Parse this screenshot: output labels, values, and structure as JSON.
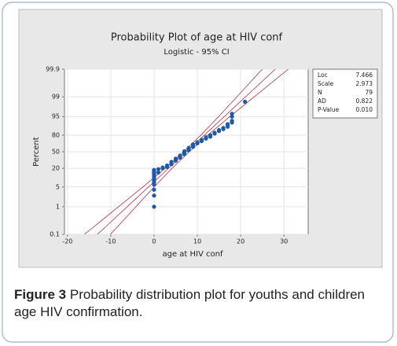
{
  "chart_data": {
    "type": "scatter",
    "scale": "logit",
    "title": "Probability Plot of age at HIV conf",
    "subtitle": "Logistic - 95% CI",
    "x_label": "age at HIV conf",
    "y_label": "Percent",
    "xlim": [
      -20.7,
      35.6
    ],
    "xticks": [
      -20,
      -10,
      0,
      10,
      20,
      30
    ],
    "ylim": [
      0.1,
      99.9
    ],
    "yticks": [
      0.1,
      1,
      5,
      20,
      50,
      80,
      95,
      99,
      99.9
    ],
    "grid": true,
    "color": "#1f5aa6",
    "line_color": "#b03040",
    "x": [
      0,
      0,
      0,
      0,
      0,
      0,
      0,
      0,
      0,
      0,
      0,
      0,
      0,
      0,
      0,
      0,
      1,
      1,
      2,
      2,
      3,
      3,
      4,
      4,
      4,
      5,
      5,
      5,
      6,
      6,
      6,
      7,
      7,
      7,
      8,
      8,
      8,
      9,
      9,
      9,
      10,
      10,
      11,
      11,
      12,
      12,
      13,
      13,
      14,
      14,
      15,
      15,
      16,
      16,
      17,
      17,
      17,
      18,
      18,
      18,
      18,
      21
    ],
    "values": [
      1,
      2.5,
      4,
      6,
      7,
      8,
      9,
      10,
      11,
      12,
      13,
      14,
      15,
      16,
      17,
      18,
      15,
      19,
      20,
      21,
      22,
      24,
      26,
      28,
      30,
      32,
      34,
      36,
      38,
      40,
      42,
      45,
      48,
      51,
      53,
      56,
      58,
      60,
      63,
      65,
      67,
      69,
      71,
      73,
      75,
      77,
      78,
      80,
      82,
      83,
      85,
      86,
      87,
      88,
      89,
      90,
      91,
      92,
      93,
      95,
      96,
      98.5
    ],
    "ci": {
      "percent": [
        0.1,
        1,
        5,
        20,
        50,
        80,
        95,
        99,
        99.9
      ],
      "lower": [
        -16.07,
        -8.19,
        -2.59,
        2.55,
        6.82,
        10.79,
        14.92,
        19.13,
        25.0
      ],
      "upper": [
        -10.07,
        -4.19,
        0.01,
        4.15,
        8.12,
        12.39,
        17.52,
        23.13,
        31.0
      ]
    },
    "stats": [
      {
        "name": "Loc",
        "value": 7.466
      },
      {
        "name": "Scale",
        "value": 2.973
      },
      {
        "name": "N",
        "value": 79
      },
      {
        "name": "AD",
        "value": 0.822
      },
      {
        "name": "P-Value",
        "value": 0.01,
        "value_label": "0.010"
      }
    ],
    "caption": {
      "label": "Figure 3",
      "text": "Probability distribution plot for youths and children age HIV confirmation."
    }
  }
}
